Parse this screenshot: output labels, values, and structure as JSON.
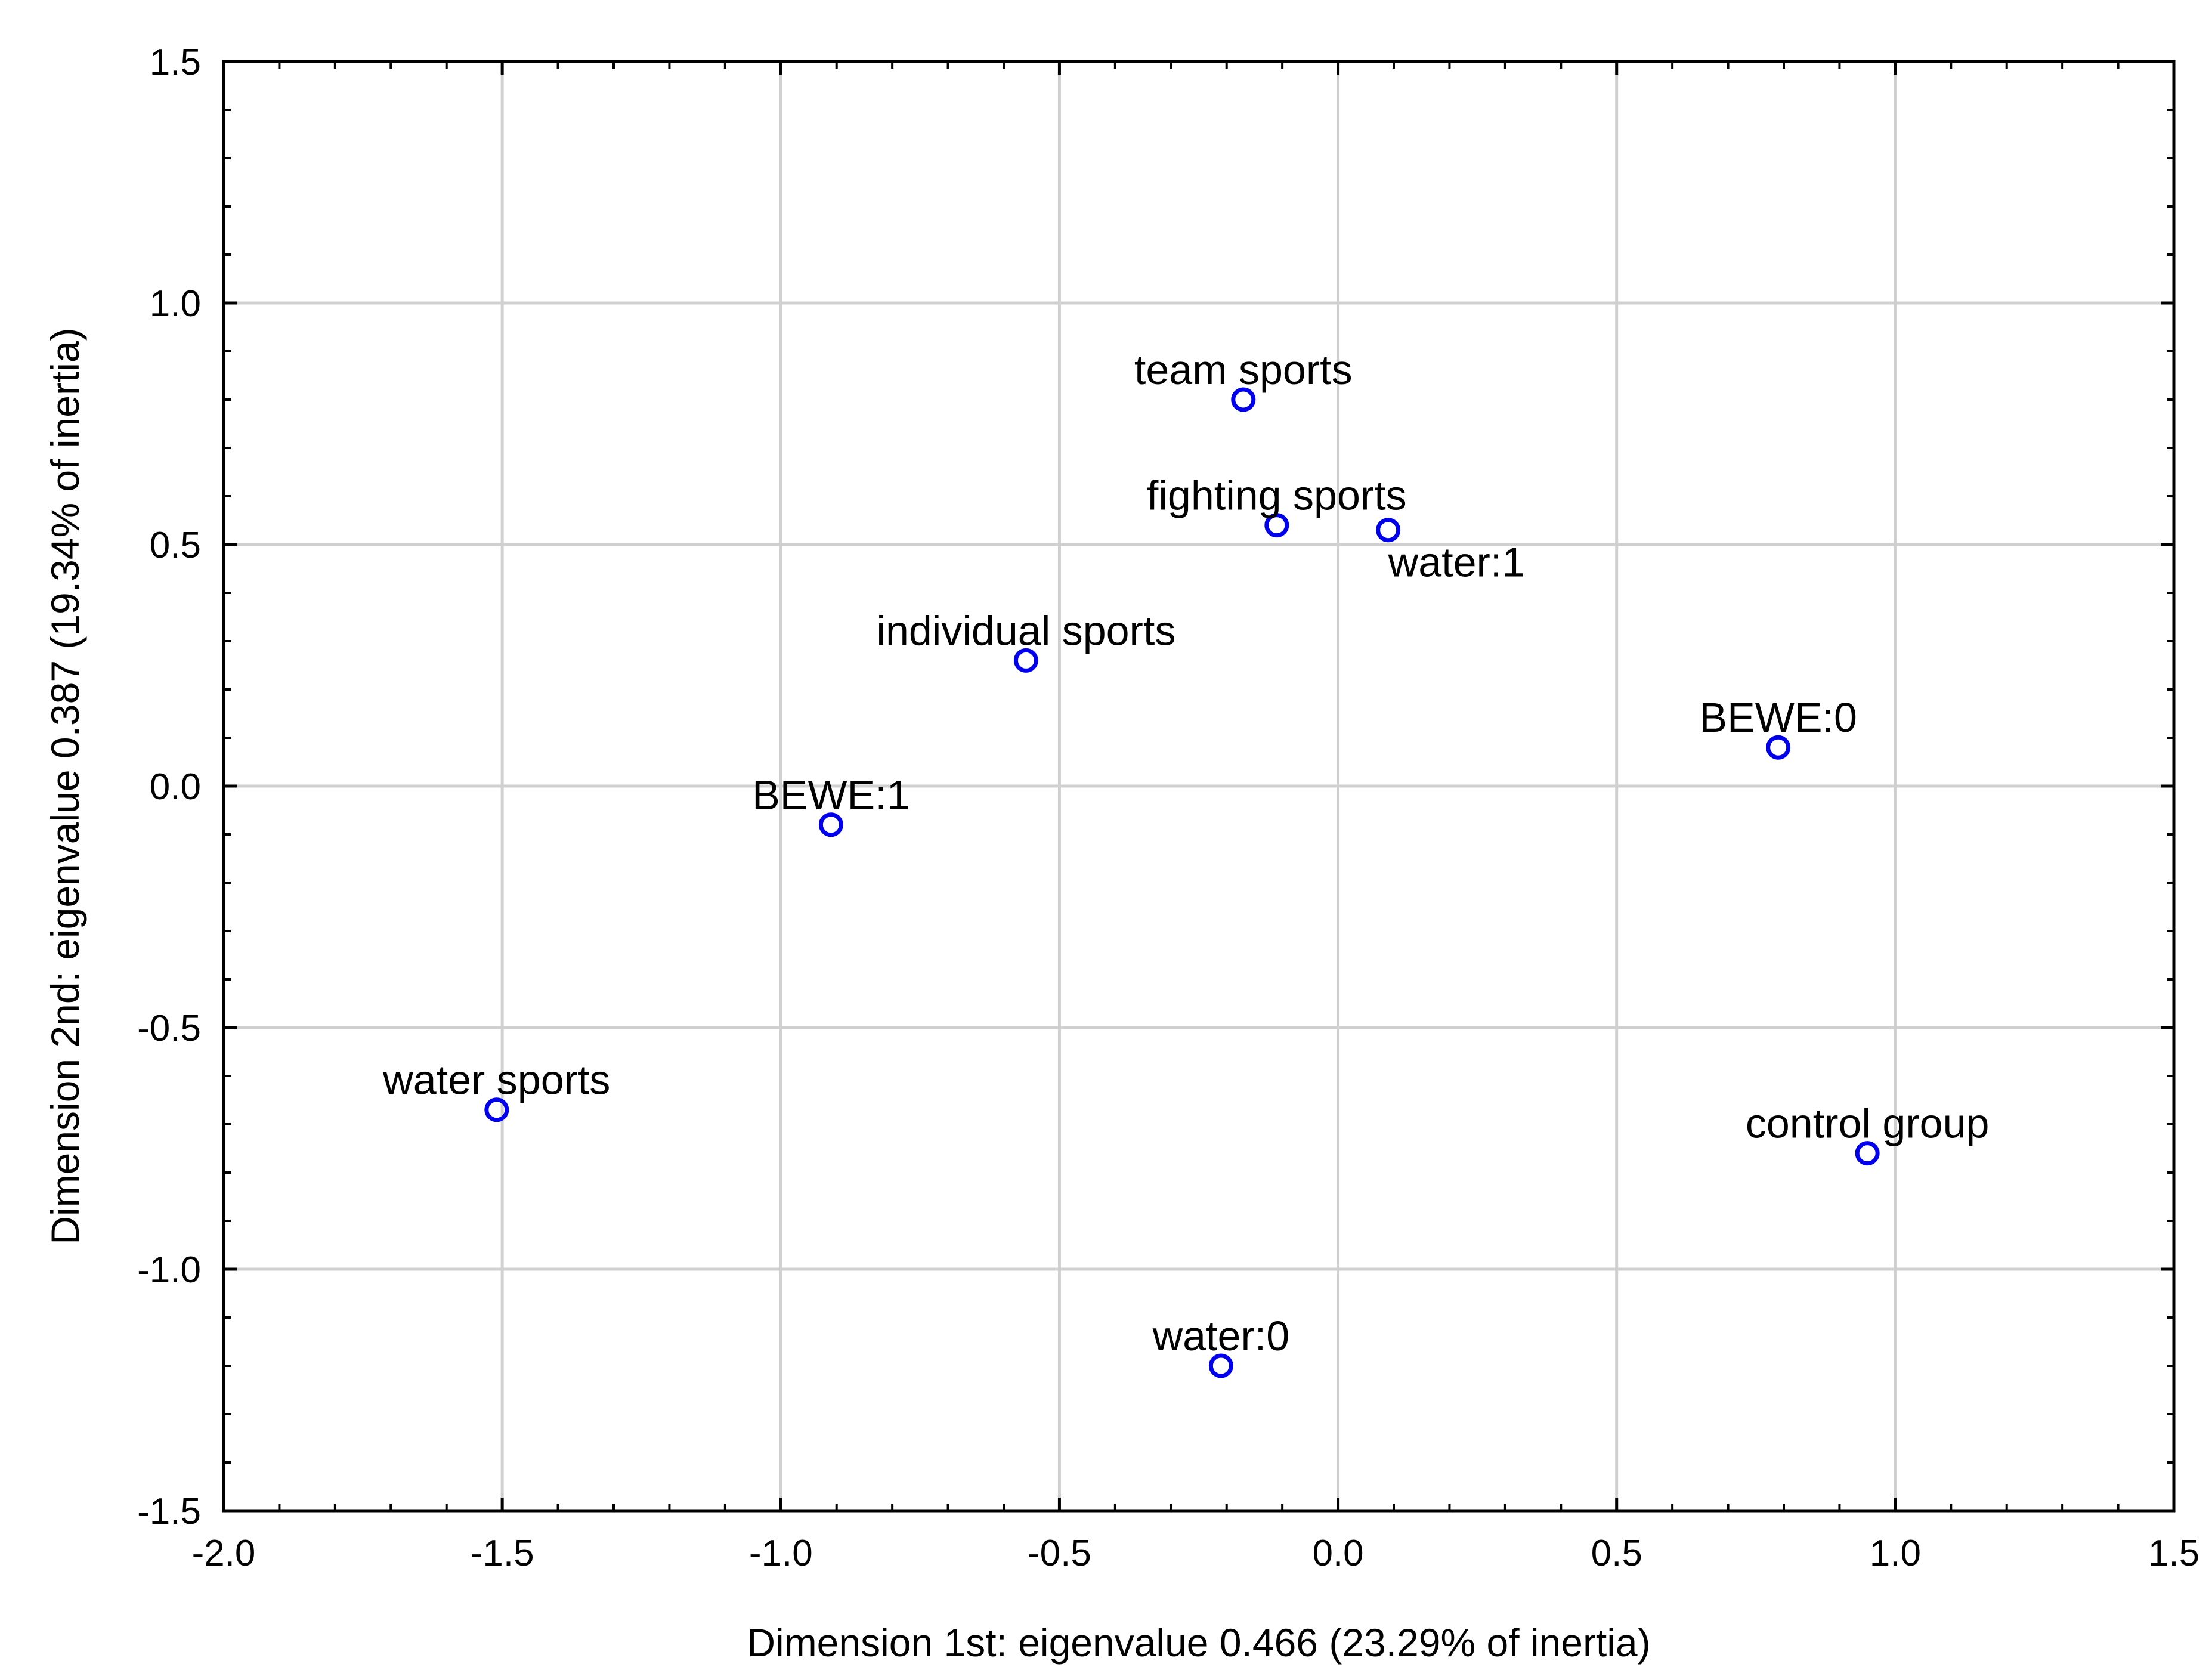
{
  "chart_data": {
    "type": "scatter",
    "xlabel": "Dimension 1st: eigenvalue 0.466 (23.29% of inertia)",
    "ylabel": "Dimension 2nd: eigenvalue 0.387 (19.34% of inertia)",
    "xlim": [
      -2.0,
      1.5
    ],
    "ylim": [
      -1.5,
      1.5
    ],
    "x_ticks": [
      "-2.0",
      "-1.5",
      "-1.0",
      "-0.5",
      "0.0",
      "0.5",
      "1.0",
      "1.5"
    ],
    "y_ticks": [
      "1.5",
      "1.0",
      "0.5",
      "0.0",
      "-0.5",
      "-1.0",
      "-1.5"
    ],
    "grid": true,
    "marker": "open-circle",
    "marker_color": "#0000ee",
    "points": [
      {
        "label": "team sports",
        "x": -0.17,
        "y": 0.8
      },
      {
        "label": "fighting sports",
        "x": -0.11,
        "y": 0.54
      },
      {
        "label": "water:1",
        "x": 0.09,
        "y": 0.53
      },
      {
        "label": "individual sports",
        "x": -0.56,
        "y": 0.26
      },
      {
        "label": "BEWE:0",
        "x": 0.79,
        "y": 0.08
      },
      {
        "label": "BEWE:1",
        "x": -0.91,
        "y": -0.08
      },
      {
        "label": "water sports",
        "x": -1.51,
        "y": -0.67
      },
      {
        "label": "control group",
        "x": 0.95,
        "y": -0.76
      },
      {
        "label": "water:0",
        "x": -0.21,
        "y": -1.2
      }
    ]
  }
}
